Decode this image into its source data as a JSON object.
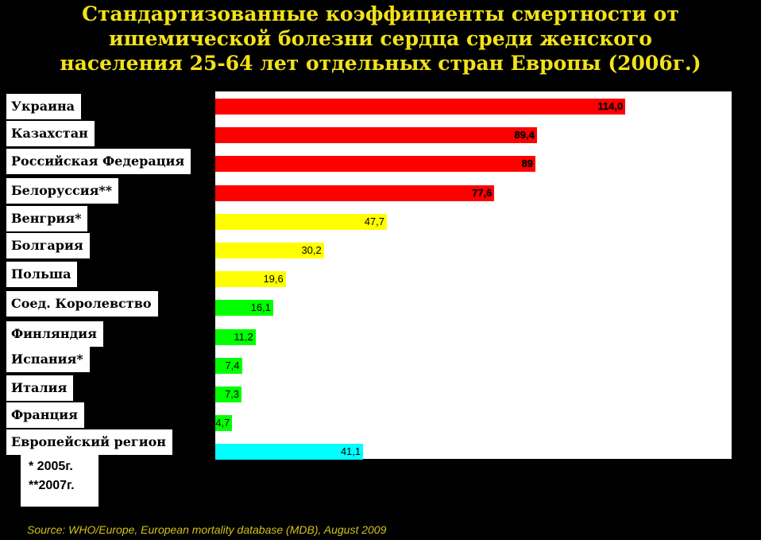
{
  "title_lines": [
    "Стандартизованные коэффициенты смертности от",
    "ишемической болезни сердца среди женского",
    "населения 25-64 лет отдельных стран Европы (2006г.)"
  ],
  "notes": [
    "* 2005г.",
    "**2007г."
  ],
  "source": "Source: WHO/Europe, European mortality database (MDB), August  2009",
  "colors": {
    "background": "#000000",
    "title": "#f2e21a",
    "red": "#ff0000",
    "yellow": "#ffff00",
    "green": "#00ff00",
    "cyan": "#00ffff"
  },
  "chart_data": {
    "type": "bar",
    "orientation": "horizontal",
    "xlim": [
      0,
      120
    ],
    "grid": false,
    "categories": [
      "Украина",
      "Казахстан",
      "Российская Федерация",
      "Белоруссия**",
      "Венгрия*",
      "Болгария",
      "Польша",
      "Соед. Королевство",
      "Финляндия",
      "Испания*",
      "Италия",
      "Франция",
      "Европейский регион"
    ],
    "values": [
      114.0,
      89.4,
      89,
      77.6,
      47.7,
      30.2,
      19.6,
      16.1,
      11.2,
      7.4,
      7.3,
      4.7,
      41.1
    ],
    "value_labels": [
      "114,0",
      "89,4",
      "89",
      "77,6",
      "47,7",
      "30,2",
      "19,6",
      "16,1",
      "11,2",
      "7,4",
      "7,3",
      "4,7",
      "41,1"
    ],
    "bar_colors": [
      "#ff0000",
      "#ff0000",
      "#ff0000",
      "#ff0000",
      "#ffff00",
      "#ffff00",
      "#ffff00",
      "#00ff00",
      "#00ff00",
      "#00ff00",
      "#00ff00",
      "#00ff00",
      "#00ffff"
    ]
  }
}
